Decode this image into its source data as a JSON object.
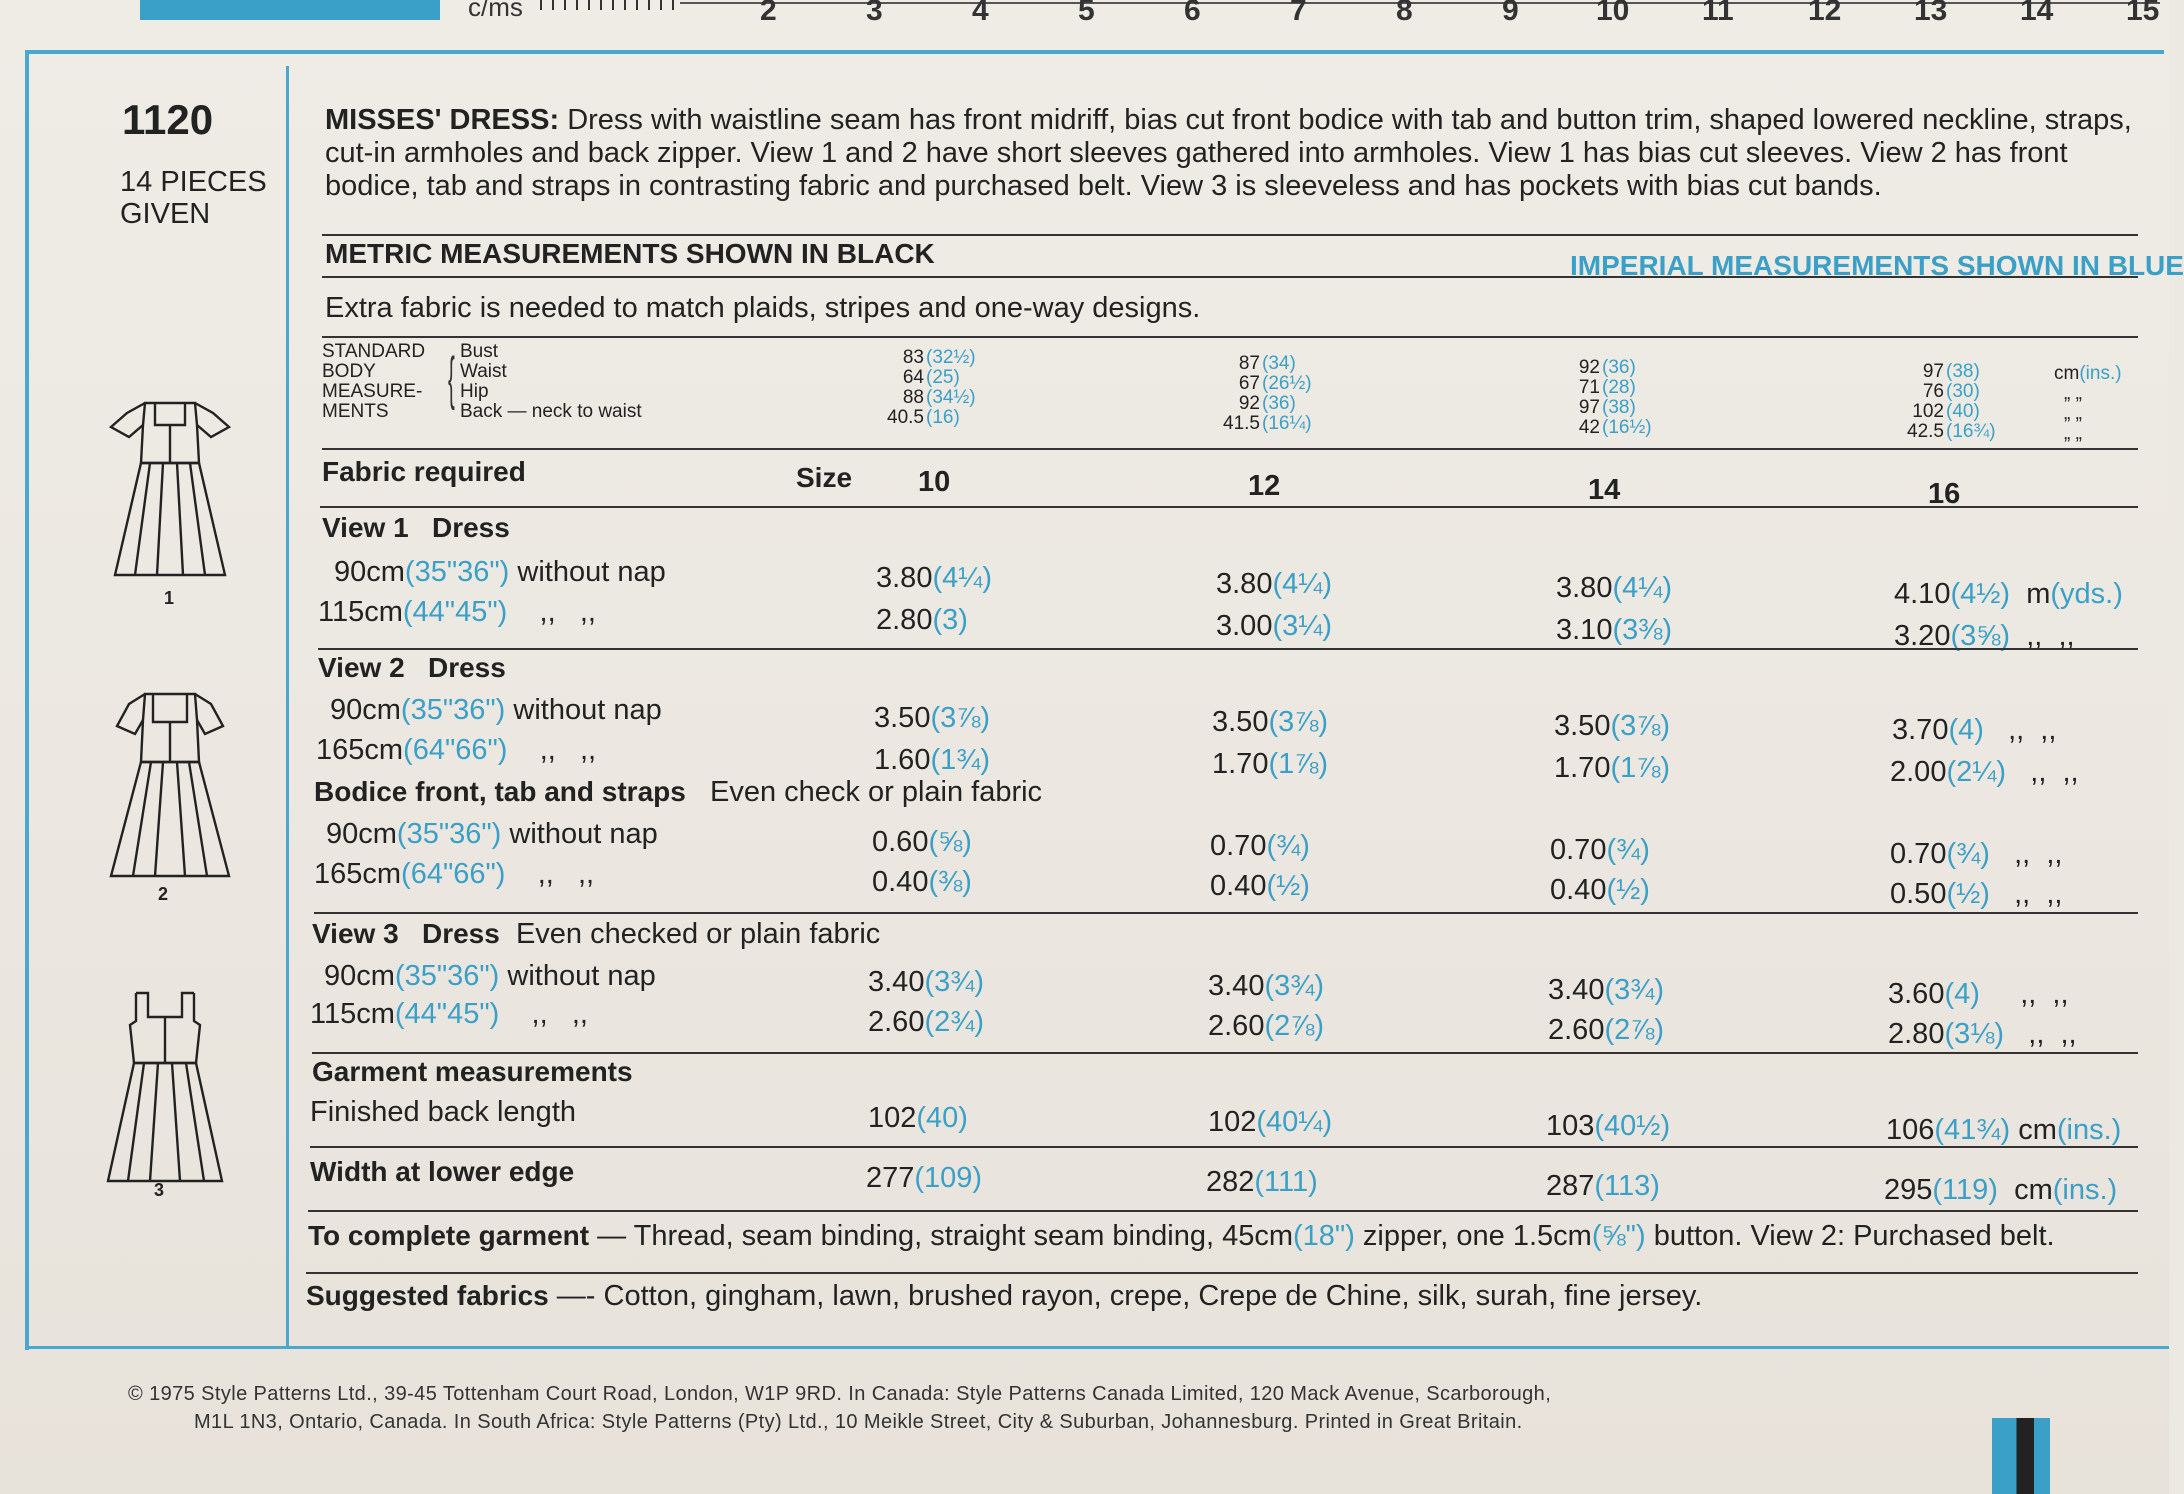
{
  "ruler": {
    "cms": "c/ms",
    "numbers": [
      "2",
      "3",
      "4",
      "5",
      "6",
      "7",
      "8",
      "9",
      "10",
      "11",
      "12",
      "13",
      "14",
      "15"
    ]
  },
  "pattern": {
    "number": "1120",
    "pieces": "14 PIECES",
    "given": "GIVEN",
    "view_numbers": [
      "1",
      "2",
      "3"
    ]
  },
  "description": {
    "title": "MISSES' DRESS:",
    "text": "Dress with waistline seam has front midriff, bias cut front bodice with tab and button trim, shaped lowered neckline, straps, cut-in armholes and back zipper. View 1 and 2 have short sleeves gathered into armholes. View 1 has bias cut sleeves. View 2 has front bodice, tab and straps in contrasting fabric and purchased belt. View 3 is sleeveless and has pockets with bias cut bands."
  },
  "metric_note": "METRIC MEASUREMENTS SHOWN IN BLACK",
  "imperial_note": "IMPERIAL MEASUREMENTS SHOWN IN BLUE",
  "extra_fabric": "Extra fabric is needed to match plaids, stripes and one-way designs.",
  "body": {
    "label_lines": [
      "STANDARD",
      "BODY",
      "MEASURE-",
      "MENTS"
    ],
    "rows": [
      "Bust",
      "Waist",
      "Hip",
      "Back — neck to waist"
    ],
    "sizes": [
      {
        "m": [
          "83",
          "64",
          "88",
          "40.5"
        ],
        "i": [
          "(32½)",
          "(25)",
          "(34½)",
          "(16)"
        ]
      },
      {
        "m": [
          "87",
          "67",
          "92",
          "41.5"
        ],
        "i": [
          "(34)",
          "(26½)",
          "(36)",
          "(16¼)"
        ]
      },
      {
        "m": [
          "92",
          "71",
          "97",
          "42"
        ],
        "i": [
          "(36)",
          "(28)",
          "(38)",
          "(16½)"
        ]
      },
      {
        "m": [
          "97",
          "76",
          "102",
          "42.5"
        ],
        "i": [
          "(38)",
          "(30)",
          "(40)",
          "(16¾)"
        ]
      }
    ],
    "unit": "cm",
    "unit_blue": "(ins.)",
    "ditto": "„ „"
  },
  "fabric_header": {
    "label": "Fabric required",
    "size": "Size",
    "sizes": [
      "10",
      "12",
      "14",
      "16"
    ]
  },
  "view1": {
    "title": "View 1   Dress",
    "rows": [
      {
        "w": "90cm",
        "wi": "(35\"36\")",
        "note": "without nap",
        "v": [
          [
            "3.80",
            "(4¼)"
          ],
          [
            "3.80",
            "(4¼)"
          ],
          [
            "3.80",
            "(4¼)"
          ],
          [
            "4.10",
            "(4½)"
          ]
        ],
        "unit": "m",
        "unit_blue": "(yds.)"
      },
      {
        "w": "115cm",
        "wi": "(44\"45\")",
        "note": ",,   ,,",
        "v": [
          [
            "2.80",
            "(3)"
          ],
          [
            "3.00",
            "(3¼)"
          ],
          [
            "3.10",
            "(3⅜)"
          ],
          [
            "3.20",
            "(3⅝)"
          ]
        ],
        "unit": ",,  ,,"
      }
    ]
  },
  "view2": {
    "title": "View 2   Dress",
    "rows": [
      {
        "w": "90cm",
        "wi": "(35\"36\")",
        "note": "without nap",
        "v": [
          [
            "3.50",
            "(3⅞)"
          ],
          [
            "3.50",
            "(3⅞)"
          ],
          [
            "3.50",
            "(3⅞)"
          ],
          [
            "3.70",
            "(4)"
          ]
        ],
        "unit": ",,  ,,"
      },
      {
        "w": "165cm",
        "wi": "(64\"66\")",
        "note": ",,   ,,",
        "v": [
          [
            "1.60",
            "(1¾)"
          ],
          [
            "1.70",
            "(1⅞)"
          ],
          [
            "1.70",
            "(1⅞)"
          ],
          [
            "2.00",
            "(2¼)"
          ]
        ],
        "unit": ",,  ,,"
      }
    ],
    "bodice_title": "Bodice front, tab and straps",
    "bodice_note": "Even check or plain fabric",
    "bodice_rows": [
      {
        "w": "90cm",
        "wi": "(35\"36\")",
        "note": "without nap",
        "v": [
          [
            "0.60",
            "(⅝)"
          ],
          [
            "0.70",
            "(¾)"
          ],
          [
            "0.70",
            "(¾)"
          ],
          [
            "0.70",
            "(¾)"
          ]
        ],
        "unit": ",,  ,,"
      },
      {
        "w": "165cm",
        "wi": "(64\"66\")",
        "note": ",,   ,,",
        "v": [
          [
            "0.40",
            "(⅜)"
          ],
          [
            "0.40",
            "(½)"
          ],
          [
            "0.40",
            "(½)"
          ],
          [
            "0.50",
            "(½)"
          ]
        ],
        "unit": ",,  ,,"
      }
    ]
  },
  "view3": {
    "title": "View 3   Dress",
    "note": "Even checked or plain fabric",
    "rows": [
      {
        "w": "90cm",
        "wi": "(35\"36\")",
        "note": "without nap",
        "v": [
          [
            "3.40",
            "(3¾)"
          ],
          [
            "3.40",
            "(3¾)"
          ],
          [
            "3.40",
            "(3¾)"
          ],
          [
            "3.60",
            "(4)"
          ]
        ],
        "unit": ",,  ,,"
      },
      {
        "w": "115cm",
        "wi": "(44\"45\")",
        "note": ",,   ,,",
        "v": [
          [
            "2.60",
            "(2¾)"
          ],
          [
            "2.60",
            "(2⅞)"
          ],
          [
            "2.60",
            "(2⅞)"
          ],
          [
            "2.80",
            "(3⅛)"
          ]
        ],
        "unit": ",,  ,,"
      }
    ]
  },
  "garment": {
    "title": "Garment measurements",
    "back_label": "Finished back length",
    "back": [
      [
        "102",
        "(40)"
      ],
      [
        "102",
        "(40¼)"
      ],
      [
        "103",
        "(40½)"
      ],
      [
        "106",
        "(41¾)"
      ]
    ],
    "width_label": "Width at lower edge",
    "width": [
      [
        "277",
        "(109)"
      ],
      [
        "282",
        "(111)"
      ],
      [
        "287",
        "(113)"
      ],
      [
        "295",
        "(119)"
      ]
    ],
    "unit": "cm",
    "unit_blue": "(ins.)"
  },
  "complete": {
    "title": "To complete garment",
    "text1": " — Thread, seam binding, straight seam binding, 45cm",
    "b1": "(18\")",
    "text2": " zipper, one 1.5cm",
    "b2": "(⅝\")",
    "text3": " button. View 2: Purchased belt."
  },
  "suggested": {
    "title": "Suggested fabrics",
    "text": " —- Cotton, gingham, lawn, brushed rayon, crepe, Crepe de Chine, silk, surah, fine jersey."
  },
  "footer": {
    "line1": "© 1975 Style Patterns Ltd., 39-45 Tottenham Court Road, London, W1P 9RD. In Canada: Style Patterns Canada Limited, 120 Mack Avenue, Scarborough,",
    "line2": "M1L 1N3, Ontario, Canada. In South Africa: Style Patterns (Pty) Ltd., 10 Meikle Street, City & Suburban, Johannesburg. Printed in Great Britain."
  }
}
